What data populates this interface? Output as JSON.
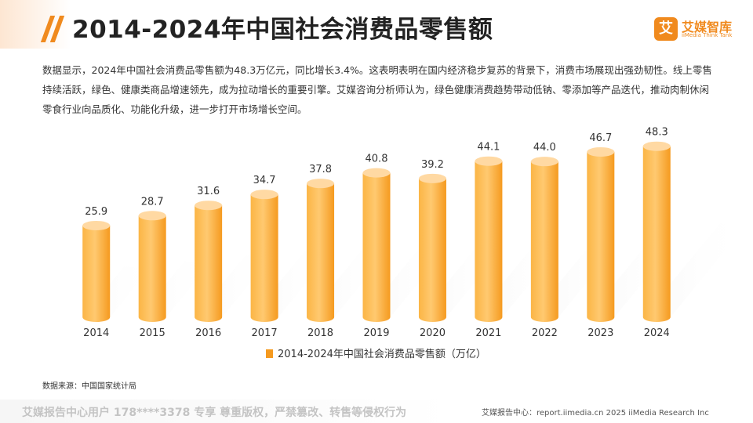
{
  "header": {
    "title": "2014-2024年中国社会消费品零售额"
  },
  "logo": {
    "badge": "艾",
    "name": "艾媒智库",
    "sub": "iiMedia Think Tank"
  },
  "description": "数据显示，2024年中国社会消费品零售额为48.3万亿元，同比增长3.4%。这表明表明在国内经济稳步复苏的背景下，消费市场展现出强劲韧性。线上零售持续活跃，绿色、健康类商品增速领先，成为拉动增长的重要引擎。艾媒咨询分析师认为，绿色健康消费趋势带动低钠、零添加等产品迭代，推动肉制休闲零食行业向品质化、功能化升级，进一步打开市场增长空间。",
  "source": "数据来源：中国国家统计局",
  "footer": {
    "watermark": "艾媒报告中心用户 178****3378 专享 尊重版权，严禁篡改、转售等侵权行为",
    "right": "艾媒报告中心：report.iimedia.cn  2025 iiMedia Research Inc"
  },
  "colors": {
    "accent": "#f08a1e",
    "bar_light": "#ffd08a",
    "bar_dark": "#f59a1f",
    "bar_top": "#ffd9a3"
  },
  "chart_data": {
    "type": "bar",
    "categories": [
      "2014",
      "2015",
      "2016",
      "2017",
      "2018",
      "2019",
      "2020",
      "2021",
      "2022",
      "2023",
      "2024"
    ],
    "series": [
      {
        "name": "2014-2024年中国社会消费品零售额（万亿）",
        "values": [
          25.9,
          28.7,
          31.6,
          34.7,
          37.8,
          40.8,
          39.2,
          44.1,
          44.0,
          46.7,
          48.3
        ]
      }
    ],
    "ylim": [
      0,
      52
    ],
    "grid": false,
    "legend_position": "bottom-center"
  }
}
